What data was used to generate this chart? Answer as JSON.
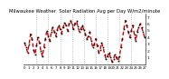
{
  "title": "Milwaukee Weather  Solar Radiation Avg per Day W/m2/minute",
  "title_fontsize": 3.8,
  "values": [
    3.2,
    2.5,
    1.8,
    3.0,
    4.5,
    3.8,
    2.2,
    1.5,
    2.8,
    4.0,
    3.2,
    2.0,
    1.2,
    2.5,
    3.8,
    5.0,
    4.2,
    3.5,
    4.8,
    5.5,
    4.9,
    4.2,
    5.1,
    5.8,
    5.2,
    4.6,
    5.5,
    6.2,
    5.8,
    5.0,
    6.0,
    6.5,
    5.9,
    5.2,
    6.1,
    6.4,
    5.6,
    4.8,
    5.3,
    5.8,
    5.1,
    4.5,
    3.8,
    4.2,
    4.8,
    3.5,
    2.5,
    3.0,
    3.8,
    2.8,
    1.8,
    2.2,
    3.2,
    2.5,
    1.5,
    0.8,
    1.2,
    1.8,
    1.0,
    0.4,
    0.8,
    1.5,
    1.0,
    0.5,
    1.2,
    2.5,
    3.8,
    5.2,
    6.5,
    5.8,
    4.8,
    4.0,
    5.0,
    5.8,
    4.5,
    3.5,
    4.8,
    5.5,
    6.0,
    5.5,
    4.8,
    4.0
  ],
  "y_ticks": [
    1,
    2,
    3,
    4,
    5,
    6,
    7
  ],
  "ylim": [
    0.0,
    7.5
  ],
  "line_color": "#cc0000",
  "marker_color": "#000000",
  "bg_color": "#ffffff",
  "grid_color": "#999999",
  "vline_positions": [
    8,
    16,
    24,
    32,
    40,
    48,
    56,
    64,
    72
  ],
  "ylabel_fontsize": 3.2,
  "xlabel_fontsize": 2.8,
  "line_width": 1.0,
  "marker_size": 1.2
}
